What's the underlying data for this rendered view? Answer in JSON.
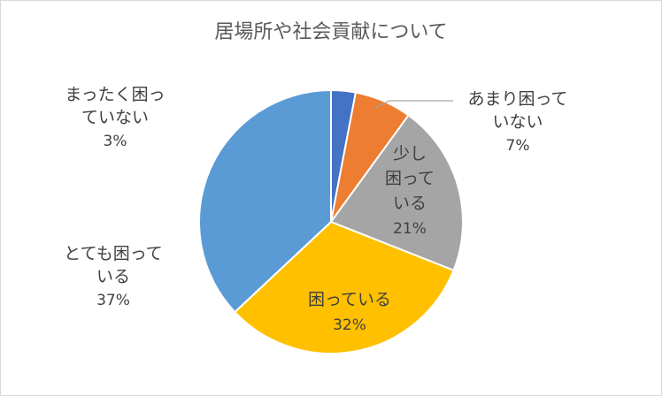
{
  "chart_data": {
    "type": "pie",
    "title": "居場所や社会貢献について",
    "start_angle_deg": 0,
    "direction": "clockwise",
    "slices": [
      {
        "label_lines": [
          "まったく困っ",
          "ていない"
        ],
        "pct_label": "3%",
        "value": 3,
        "color": "#4472C4"
      },
      {
        "label_lines": [
          "あまり困って",
          "いない"
        ],
        "pct_label": "7%",
        "value": 7,
        "color": "#ED7D31"
      },
      {
        "label_lines": [
          "少し",
          "困って",
          "いる"
        ],
        "pct_label": "21%",
        "value": 21,
        "color": "#A5A5A5"
      },
      {
        "label_lines": [
          "困っている"
        ],
        "pct_label": "32%",
        "value": 32,
        "color": "#FFC000"
      },
      {
        "label_lines": [
          "とても困って",
          "いる"
        ],
        "pct_label": "37%",
        "value": 37,
        "color": "#5B9BD5"
      }
    ]
  }
}
